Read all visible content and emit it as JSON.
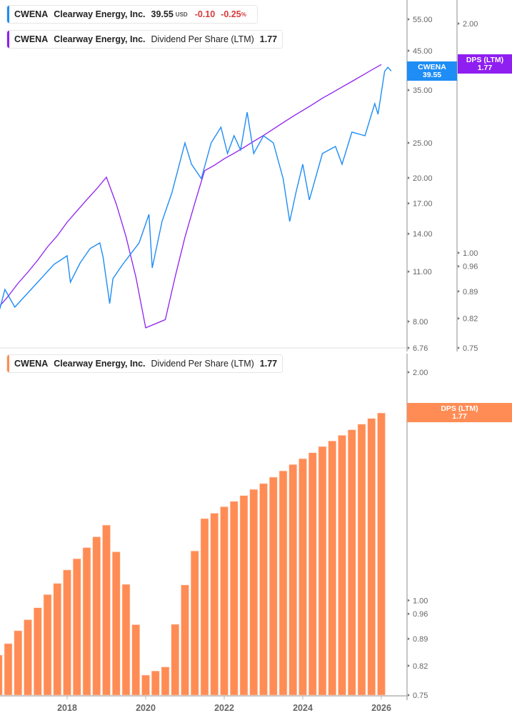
{
  "legend_price": {
    "ticker": "CWENA",
    "company": "Clearway Energy, Inc.",
    "price": "39.55",
    "currency": "USD",
    "change": "-0.10",
    "change_pct": "-0.25",
    "pct_sign": "%"
  },
  "legend_dps_top": {
    "ticker": "CWENA",
    "company": "Clearway Energy, Inc.",
    "metric": "Dividend Per Share (LTM)",
    "value": "1.77"
  },
  "legend_dps_bottom": {
    "ticker": "CWENA",
    "company": "Clearway Energy, Inc.",
    "metric": "Dividend Per Share (LTM)",
    "value": "1.77"
  },
  "tags": {
    "price": {
      "line1": "CWENA",
      "line2": "39.55"
    },
    "dps_top": {
      "line1": "DPS (LTM)",
      "line2": "1.77"
    },
    "dps_bottom": {
      "line1": "DPS (LTM)",
      "line2": "1.77"
    }
  },
  "colors": {
    "price": "#1e8df5",
    "dps_line": "#8f1ff0",
    "dps_bar": "#ff8c55",
    "axis": "#b4b4b4"
  },
  "chart_data": [
    {
      "type": "line",
      "scale": "log",
      "x_ticks": [
        "2018",
        "2020",
        "2022",
        "2024",
        "2026"
      ],
      "y_ticks_price": [
        "55.00",
        "45.00",
        "35.00",
        "25.00",
        "20.00",
        "17.00",
        "14.00",
        "11.00",
        "8.00",
        "6.76"
      ],
      "y_ticks_dps": [
        "2.00",
        "1.00",
        "0.96",
        "0.89",
        "0.82",
        "0.75"
      ],
      "ylim_price": [
        6.76,
        55
      ],
      "ylim_dps": [
        0.75,
        2.0
      ],
      "series": [
        {
          "name": "CWENA",
          "axis": "price",
          "points": [
            [
              "2016-04",
              8.38
            ],
            [
              "2016-06",
              9.82
            ],
            [
              "2016-09",
              8.77
            ],
            [
              "2017-01",
              9.6
            ],
            [
              "2017-04",
              10.28
            ],
            [
              "2017-07",
              11.01
            ],
            [
              "2017-09",
              11.52
            ],
            [
              "2018-01",
              12.17
            ],
            [
              "2018-02",
              10.28
            ],
            [
              "2018-05",
              11.63
            ],
            [
              "2018-08",
              12.74
            ],
            [
              "2018-11",
              13.21
            ],
            [
              "2018-12",
              12.06
            ],
            [
              "2019-02",
              8.97
            ],
            [
              "2019-03",
              10.52
            ],
            [
              "2019-06",
              11.52
            ],
            [
              "2019-11",
              13.21
            ],
            [
              "2020-02",
              15.85
            ],
            [
              "2020-03",
              11.26
            ],
            [
              "2020-06",
              15.15
            ],
            [
              "2020-09",
              18.18
            ],
            [
              "2021-01",
              25.0
            ],
            [
              "2021-03",
              21.82
            ],
            [
              "2021-06",
              19.91
            ],
            [
              "2021-09",
              25.0
            ],
            [
              "2021-12",
              27.64
            ],
            [
              "2022-02",
              23.36
            ],
            [
              "2022-04",
              26.17
            ],
            [
              "2022-06",
              23.9
            ],
            [
              "2022-08",
              30.42
            ],
            [
              "2022-10",
              23.36
            ],
            [
              "2023-01",
              26.17
            ],
            [
              "2023-04",
              25.0
            ],
            [
              "2023-07",
              19.91
            ],
            [
              "2023-09",
              15.15
            ],
            [
              "2023-11",
              18.34
            ],
            [
              "2024-01",
              21.82
            ],
            [
              "2024-03",
              17.37
            ],
            [
              "2024-07",
              23.36
            ],
            [
              "2024-11",
              24.44
            ],
            [
              "2025-01",
              21.82
            ],
            [
              "2025-04",
              26.78
            ],
            [
              "2025-08",
              26.17
            ],
            [
              "2025-11",
              32.13
            ],
            [
              "2025-12",
              30.01
            ],
            [
              "2026-02",
              39.45
            ],
            [
              "2026-03",
              40.5
            ],
            [
              "2026-04",
              39.55
            ]
          ]
        },
        {
          "name": "Dividend Per Share (LTM)",
          "axis": "dps",
          "ref": "dps_quarterly"
        }
      ]
    },
    {
      "type": "bar",
      "scale": "log",
      "x_ticks": [
        "2018",
        "2020",
        "2022",
        "2024",
        "2026"
      ],
      "y_ticks": [
        "2.00",
        "1.00",
        "0.96",
        "0.89",
        "0.82",
        "0.75"
      ],
      "ylim": [
        0.75,
        2.0
      ],
      "last_period": "2026-Q1",
      "frequency": "quarterly",
      "dps_quarterly": [
        0.847,
        0.877,
        0.912,
        0.943,
        0.978,
        1.018,
        1.053,
        1.097,
        1.135,
        1.174,
        1.213,
        1.257,
        1.159,
        1.05,
        0.929,
        0.797,
        0.807,
        0.817,
        0.93,
        1.048,
        1.162,
        1.282,
        1.303,
        1.329,
        1.351,
        1.375,
        1.401,
        1.426,
        1.454,
        1.482,
        1.511,
        1.538,
        1.566,
        1.596,
        1.623,
        1.651,
        1.679,
        1.708,
        1.738,
        1.767
      ]
    }
  ]
}
